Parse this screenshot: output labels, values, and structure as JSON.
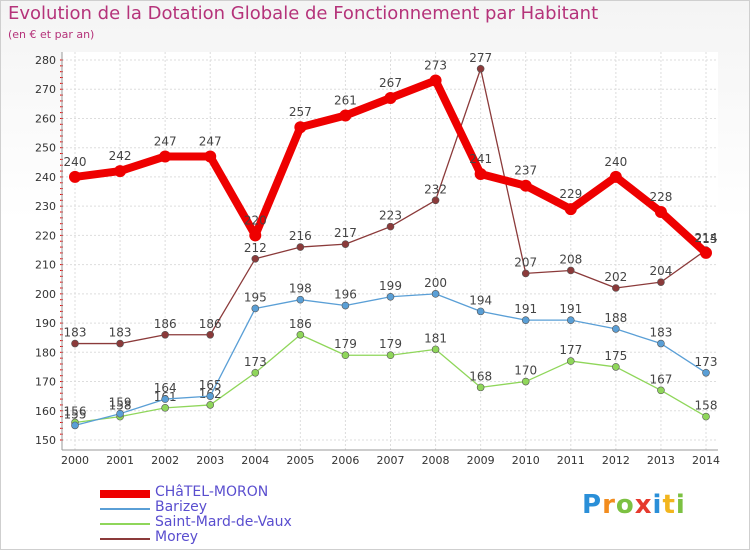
{
  "chart_data": {
    "type": "line",
    "title": "Evolution de la Dotation Globale de Fonctionnement par Habitant",
    "subtitle": "(en € et par an)",
    "categories": [
      "2000",
      "2001",
      "2002",
      "2003",
      "2004",
      "2005",
      "2006",
      "2007",
      "2008",
      "2009",
      "2010",
      "2011",
      "2012",
      "2013",
      "2014"
    ],
    "ylim": [
      150,
      280
    ],
    "yticks": [
      150,
      160,
      170,
      180,
      190,
      200,
      210,
      220,
      230,
      240,
      250,
      260,
      270,
      280
    ],
    "grid": true,
    "series": [
      {
        "name": "Morey",
        "color": "#8b3a3a",
        "values": [
          183,
          183,
          186,
          186,
          212,
          216,
          217,
          223,
          232,
          277,
          207,
          208,
          202,
          204,
          215
        ]
      },
      {
        "name": "Saint-Mard-de-Vaux",
        "color": "#8fd65a",
        "values": [
          156,
          158,
          161,
          162,
          173,
          186,
          179,
          179,
          181,
          168,
          170,
          177,
          175,
          167,
          158
        ]
      },
      {
        "name": "Barizey",
        "color": "#5a9fd6",
        "values": [
          155,
          159,
          164,
          165,
          195,
          198,
          196,
          199,
          200,
          194,
          191,
          191,
          188,
          183,
          173
        ]
      },
      {
        "name": "CHâTEL-MORON",
        "color": "#ee0000",
        "values": [
          240,
          242,
          247,
          247,
          220,
          257,
          261,
          267,
          273,
          241,
          237,
          229,
          240,
          228,
          214
        ]
      }
    ]
  },
  "legend": {
    "items": [
      {
        "label": "CHâTEL-MORON",
        "color": "#ee0000"
      },
      {
        "label": "Barizey",
        "color": "#5a9fd6"
      },
      {
        "label": "Saint-Mard-de-Vaux",
        "color": "#8fd65a"
      },
      {
        "label": "Morey",
        "color": "#8b3a3a"
      }
    ]
  },
  "logo": {
    "letters": [
      "P",
      "r",
      "o",
      "x",
      "i",
      "t",
      "i"
    ],
    "colors": [
      "#2a8fd8",
      "#f28c1e",
      "#7cc142",
      "#e63a2e",
      "#2a8fd8",
      "#f2b51e",
      "#7cc142"
    ]
  }
}
